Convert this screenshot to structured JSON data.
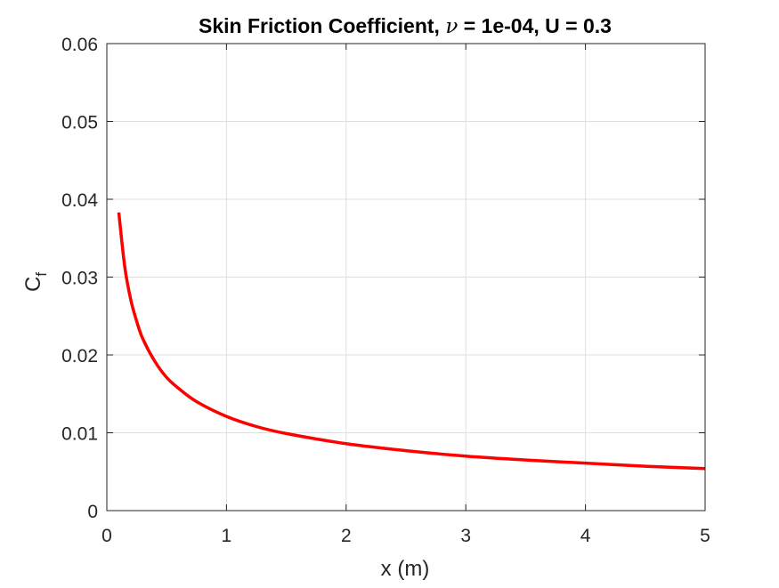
{
  "chart_data": {
    "type": "line",
    "title_main": "Skin Friction Coefficient, ",
    "title_nu": "ν",
    "title_rest": " = 1e-04, U = 0.3",
    "xlabel": "x (m)",
    "ylabel_main": "C",
    "ylabel_sub": "f",
    "xlim": [
      0,
      5
    ],
    "ylim": [
      0,
      0.06
    ],
    "x_ticks": [
      0,
      1,
      2,
      3,
      4,
      5
    ],
    "x_tick_labels": [
      "0",
      "1",
      "2",
      "3",
      "4",
      "5"
    ],
    "y_ticks": [
      0,
      0.01,
      0.02,
      0.03,
      0.04,
      0.05,
      0.06
    ],
    "y_tick_labels": [
      "0",
      "0.01",
      "0.02",
      "0.03",
      "0.04",
      "0.05",
      "0.06"
    ],
    "grid": true,
    "box": true,
    "series": [
      {
        "color": "#ff0000",
        "x": [
          0.1,
          0.15,
          0.2,
          0.25,
          0.3,
          0.4,
          0.5,
          0.6,
          0.75,
          1.0,
          1.25,
          1.5,
          2.0,
          2.5,
          3.0,
          3.5,
          4.0,
          4.5,
          5.0
        ],
        "y": [
          0.0383,
          0.0313,
          0.0271,
          0.0243,
          0.0221,
          0.0192,
          0.0171,
          0.0157,
          0.014,
          0.0121,
          0.0108,
          0.0099,
          0.0086,
          0.0077,
          0.007,
          0.0065,
          0.0061,
          0.0057,
          0.0054
        ]
      }
    ]
  }
}
